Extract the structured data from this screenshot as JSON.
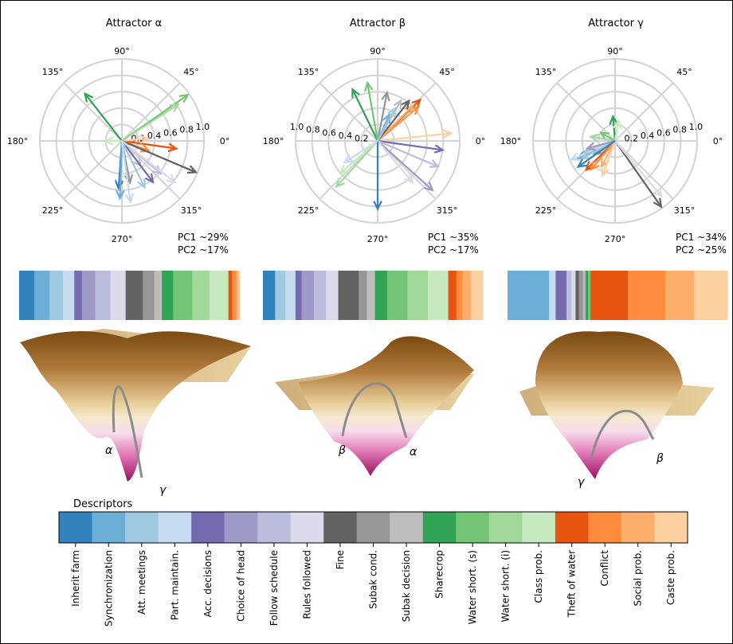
{
  "colors": {
    "Inherit farm": "#3182bd",
    "Synchronization": "#6baed6",
    "Att. meetings": "#9ecae1",
    "Part. maintain.": "#c6dbef",
    "Acc. decisions": "#756bb1",
    "Choice of head": "#9e9ac8",
    "Follow schedule": "#bcbddc",
    "Rules followed": "#dadaeb",
    "Fine": "#636363",
    "Subak cond.": "#969696",
    "Subak decision": "#bdbdbd",
    "Sharecrop": "#31a354",
    "Water short. (s)": "#74c476",
    "Water short. (i)": "#a1d99b",
    "Class prob.": "#c7e9c0",
    "Theft of water": "#e6550d",
    "Conflict": "#fd8d3c",
    "Social prob.": "#fdae6b",
    "Caste prob.": "#fdd0a2"
  },
  "chart_data": [
    {
      "type": "polar-vectors",
      "title": "Attractor α",
      "pc1": "PC1 ~29%",
      "pc2": "PC2 ~17%",
      "angle_labels": [
        "0°",
        "45°",
        "90°",
        "135°",
        "180°",
        "225°",
        "270°",
        "315°"
      ],
      "radial_ticks": [
        "0.2",
        "0.4",
        "0.6",
        "0.8",
        "1.0"
      ],
      "radial_label_angle": 10,
      "arrows": [
        {
          "name": "Sharecrop",
          "angle": 128,
          "r": 0.73
        },
        {
          "name": "Water short. (s)",
          "angle": 35,
          "r": 0.98
        },
        {
          "name": "Water short. (i)",
          "angle": 33,
          "r": 0.82
        },
        {
          "name": "Class prob.",
          "angle": 180,
          "r": 0.2
        },
        {
          "name": "Theft of water",
          "angle": 352,
          "r": 0.67
        },
        {
          "name": "Conflict",
          "angle": 340,
          "r": 0.35
        },
        {
          "name": "Caste prob.",
          "angle": 5,
          "r": 0.32
        },
        {
          "name": "Fine",
          "angle": 337,
          "r": 0.98
        },
        {
          "name": "Subak cond.",
          "angle": 281,
          "r": 0.52
        },
        {
          "name": "Subak decision",
          "angle": 307,
          "r": 0.38
        },
        {
          "name": "Acc. decisions",
          "angle": 307,
          "r": 0.63
        },
        {
          "name": "Follow schedule",
          "angle": 320,
          "r": 0.62
        },
        {
          "name": "Rules followed",
          "angle": 322,
          "r": 0.82
        },
        {
          "name": "Inherit farm",
          "angle": 266,
          "r": 0.58
        },
        {
          "name": "Synchronization",
          "angle": 268,
          "r": 0.7
        },
        {
          "name": "Att. meetings",
          "angle": 296,
          "r": 0.63
        },
        {
          "name": "Part. maintain.",
          "angle": 278,
          "r": 0.75
        }
      ],
      "bar": [
        {
          "name": "Inherit farm",
          "w": 4.0
        },
        {
          "name": "Synchronization",
          "w": 4.0
        },
        {
          "name": "Att. meetings",
          "w": 3.5
        },
        {
          "name": "Part. maintain.",
          "w": 3.0
        },
        {
          "name": "Acc. decisions",
          "w": 2.0
        },
        {
          "name": "Choice of head",
          "w": 3.5
        },
        {
          "name": "Follow schedule",
          "w": 4.0
        },
        {
          "name": "Rules followed",
          "w": 4.0
        },
        {
          "name": "Fine",
          "w": 4.5
        },
        {
          "name": "Subak cond.",
          "w": 3.0
        },
        {
          "name": "Subak decision",
          "w": 2.0
        },
        {
          "name": "Sharecrop",
          "w": 3.0
        },
        {
          "name": "Water short. (s)",
          "w": 5.0
        },
        {
          "name": "Water short. (i)",
          "w": 4.5
        },
        {
          "name": "Class prob.",
          "w": 5.0
        },
        {
          "name": "Theft of water",
          "w": 1.0
        },
        {
          "name": "Conflict",
          "w": 1.0
        },
        {
          "name": "Social prob.",
          "w": 0.5
        },
        {
          "name": "Caste prob.",
          "w": 0.5
        }
      ],
      "landscape": {
        "variant": "a",
        "labels": [
          "α",
          "γ"
        ]
      }
    },
    {
      "type": "polar-vectors",
      "title": "Attractor β",
      "pc1": "PC1 ~35%",
      "pc2": "PC2 ~17%",
      "angle_labels": [
        "0°",
        "45°",
        "90°",
        "135°",
        "180°",
        "225°",
        "270°",
        "315°"
      ],
      "radial_ticks": [
        "0.2",
        "0.4",
        "0.6",
        "0.8",
        "1.0"
      ],
      "radial_label_angle": 170,
      "arrows": [
        {
          "name": "Sharecrop",
          "angle": 116,
          "r": 0.7
        },
        {
          "name": "Water short. (s)",
          "angle": 100,
          "r": 0.72
        },
        {
          "name": "Water short. (i)",
          "angle": 228,
          "r": 0.75
        },
        {
          "name": "Class prob.",
          "angle": 221,
          "r": 0.6
        },
        {
          "name": "Theft of water",
          "angle": 44,
          "r": 0.72
        },
        {
          "name": "Conflict",
          "angle": 40,
          "r": 0.65
        },
        {
          "name": "Social prob.",
          "angle": 45,
          "r": 0.6
        },
        {
          "name": "Caste prob.",
          "angle": 6,
          "r": 0.9
        },
        {
          "name": "Fine",
          "angle": 52,
          "r": 0.62
        },
        {
          "name": "Subak cond.",
          "angle": 79,
          "r": 0.6
        },
        {
          "name": "Subak decision",
          "angle": 60,
          "r": 0.57
        },
        {
          "name": "Acc. decisions",
          "angle": 352,
          "r": 0.8
        },
        {
          "name": "Choice of head",
          "angle": 318,
          "r": 0.9
        },
        {
          "name": "Follow schedule",
          "angle": 337,
          "r": 0.8
        },
        {
          "name": "Rules followed",
          "angle": 310,
          "r": 0.66
        },
        {
          "name": "Inherit farm",
          "angle": 270,
          "r": 0.83
        },
        {
          "name": "Synchronization",
          "angle": 66,
          "r": 0.35
        },
        {
          "name": "Att. meetings",
          "angle": 62,
          "r": 0.45
        },
        {
          "name": "Part. maintain.",
          "angle": 213,
          "r": 0.48
        }
      ],
      "bar": [
        {
          "name": "Inherit farm",
          "w": 3.0
        },
        {
          "name": "Att. meetings",
          "w": 2.5
        },
        {
          "name": "Part. maintain.",
          "w": 2.5
        },
        {
          "name": "Acc. decisions",
          "w": 1.5
        },
        {
          "name": "Choice of head",
          "w": 3.0
        },
        {
          "name": "Follow schedule",
          "w": 3.0
        },
        {
          "name": "Rules followed",
          "w": 3.0
        },
        {
          "name": "Fine",
          "w": 5.0
        },
        {
          "name": "Subak cond.",
          "w": 2.0
        },
        {
          "name": "Subak decision",
          "w": 2.0
        },
        {
          "name": "Sharecrop",
          "w": 3.0
        },
        {
          "name": "Water short. (s)",
          "w": 5.0
        },
        {
          "name": "Water short. (i)",
          "w": 5.0
        },
        {
          "name": "Class prob.",
          "w": 5.0
        },
        {
          "name": "Theft of water",
          "w": 2.0
        },
        {
          "name": "Conflict",
          "w": 1.5
        },
        {
          "name": "Social prob.",
          "w": 2.0
        },
        {
          "name": "Caste prob.",
          "w": 3.0
        }
      ],
      "landscape": {
        "variant": "b",
        "labels": [
          "β",
          "α"
        ]
      }
    },
    {
      "type": "polar-vectors",
      "title": "Attractor γ",
      "pc1": "PC1 ~34%",
      "pc2": "PC2 ~25%",
      "angle_labels": [
        "0°",
        "45°",
        "90°",
        "135°",
        "180°",
        "225°",
        "270°",
        "315°"
      ],
      "radial_ticks": [
        "0.2",
        "0.4",
        "0.6",
        "0.8",
        "1.0"
      ],
      "radial_label_angle": 10,
      "arrows": [
        {
          "name": "Fine",
          "angle": 305,
          "r": 0.98
        },
        {
          "name": "Rules followed",
          "angle": 310,
          "r": 0.88
        },
        {
          "name": "Sharecrop",
          "angle": 95,
          "r": 0.3
        },
        {
          "name": "Class prob.",
          "angle": 80,
          "r": 0.25
        },
        {
          "name": "Water short. (s)",
          "angle": 150,
          "r": 0.2
        },
        {
          "name": "Water short. (i)",
          "angle": 170,
          "r": 0.3
        },
        {
          "name": "Theft of water",
          "angle": 225,
          "r": 0.5
        },
        {
          "name": "Conflict",
          "angle": 230,
          "r": 0.45
        },
        {
          "name": "Social prob.",
          "angle": 242,
          "r": 0.35
        },
        {
          "name": "Caste prob.",
          "angle": 250,
          "r": 0.45
        },
        {
          "name": "Subak cond.",
          "angle": 212,
          "r": 0.3
        },
        {
          "name": "Subak decision",
          "angle": 200,
          "r": 0.4
        },
        {
          "name": "Synchronization",
          "angle": 205,
          "r": 0.5
        },
        {
          "name": "Part. maintain.",
          "angle": 203,
          "r": 0.58
        },
        {
          "name": "Att. meetings",
          "angle": 208,
          "r": 0.45
        },
        {
          "name": "Choice of head",
          "angle": 195,
          "r": 0.35
        },
        {
          "name": "Inherit farm",
          "angle": 215,
          "r": 0.55
        }
      ],
      "bar": [
        {
          "name": "Synchronization",
          "w": 5.0
        },
        {
          "name": "Part. maintain.",
          "w": 0.8
        },
        {
          "name": "Acc. decisions",
          "w": 1.3
        },
        {
          "name": "Follow schedule",
          "w": 0.6
        },
        {
          "name": "Rules followed",
          "w": 0.5
        },
        {
          "name": "Fine",
          "w": 0.4
        },
        {
          "name": "Subak cond.",
          "w": 0.5
        },
        {
          "name": "Subak decision",
          "w": 0.3
        },
        {
          "name": "Sharecrop",
          "w": 0.3
        },
        {
          "name": "Water short. (s)",
          "w": 0.3
        },
        {
          "name": "Theft of water",
          "w": 4.5
        },
        {
          "name": "Conflict",
          "w": 4.5
        },
        {
          "name": "Social prob.",
          "w": 3.5
        },
        {
          "name": "Caste prob.",
          "w": 4.0
        }
      ],
      "landscape": {
        "variant": "c",
        "labels": [
          "γ",
          "β"
        ]
      }
    }
  ],
  "legend": {
    "title": "Descriptors",
    "items": [
      "Inherit farm",
      "Synchronization",
      "Att. meetings",
      "Part. maintain.",
      "Acc. decisions",
      "Choice of head",
      "Follow schedule",
      "Rules followed",
      "Fine",
      "Subak cond.",
      "Subak decision",
      "Sharecrop",
      "Water short. (s)",
      "Water short. (i)",
      "Class prob.",
      "Theft of water",
      "Conflict",
      "Social prob.",
      "Caste prob."
    ]
  }
}
